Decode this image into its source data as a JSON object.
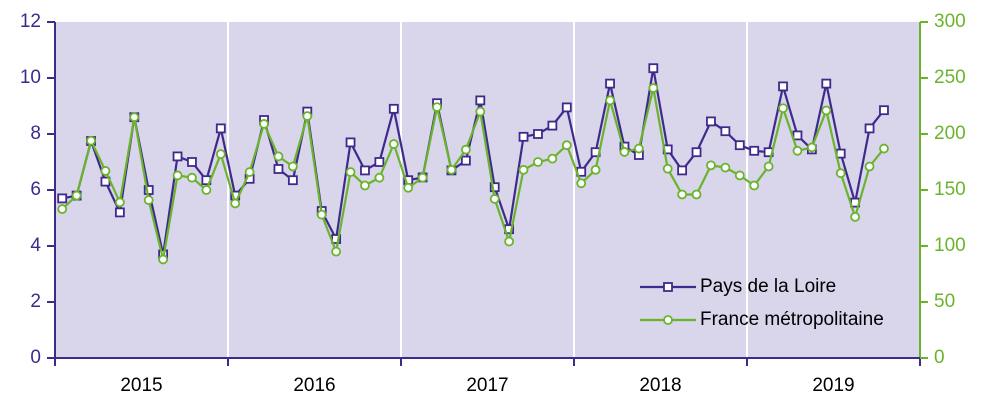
{
  "chart_data": {
    "type": "line",
    "year_labels": [
      "2015",
      "2016",
      "2017",
      "2018",
      "2019"
    ],
    "categories": [
      null,
      null,
      null,
      null,
      null,
      null,
      null,
      null,
      null,
      null,
      null,
      null,
      null,
      null,
      null,
      null,
      null,
      null,
      null,
      null,
      null,
      null,
      null,
      null,
      null,
      null,
      null,
      null,
      null,
      null,
      null,
      null,
      null,
      null,
      null,
      null,
      null,
      null,
      null,
      null,
      null,
      null,
      null,
      null,
      null,
      null,
      null,
      null,
      null,
      null,
      null,
      null,
      null,
      null,
      null,
      null,
      null,
      null
    ],
    "series": [
      {
        "name": "Pays de la Loire",
        "color": "#3f2a8c",
        "axis": "y",
        "values": [
          5.7,
          5.8,
          7.75,
          6.3,
          5.2,
          8.6,
          6.0,
          3.7,
          7.2,
          7.0,
          6.35,
          8.2,
          5.8,
          6.4,
          8.5,
          6.75,
          6.35,
          8.8,
          5.25,
          4.25,
          7.7,
          6.7,
          7.0,
          8.9,
          6.35,
          6.45,
          9.1,
          6.7,
          7.05,
          9.2,
          6.1,
          4.6,
          7.9,
          8.0,
          8.3,
          8.95,
          6.65,
          7.35,
          9.8,
          7.55,
          7.25,
          10.35,
          7.45,
          6.7,
          7.35,
          8.45,
          8.1,
          7.6,
          7.4,
          7.35,
          9.7,
          7.95,
          7.45,
          9.8,
          7.3,
          5.55,
          8.2,
          8.85
        ]
      },
      {
        "name": "France métropolitaine",
        "color": "#6ab42d",
        "axis": "y2",
        "values": [
          133,
          145,
          194,
          167,
          139,
          215,
          141,
          88,
          163,
          161,
          150,
          182,
          138,
          166,
          209,
          180,
          171,
          216,
          128,
          95,
          166,
          154,
          161,
          191,
          152,
          161,
          224,
          168,
          186,
          220,
          142,
          104,
          168,
          175,
          178,
          190,
          156,
          168,
          230,
          184,
          187,
          241,
          169,
          146,
          146,
          172,
          170,
          163,
          154,
          171,
          223,
          185,
          188,
          221,
          165,
          126,
          171,
          187
        ]
      }
    ],
    "ylim": [
      0,
      12
    ],
    "yticks": [
      0,
      2,
      4,
      6,
      8,
      10,
      12
    ],
    "y2lim": [
      0,
      300
    ],
    "y2ticks": [
      0,
      50,
      100,
      150,
      200,
      250,
      300
    ],
    "legend": "bottom-right"
  }
}
